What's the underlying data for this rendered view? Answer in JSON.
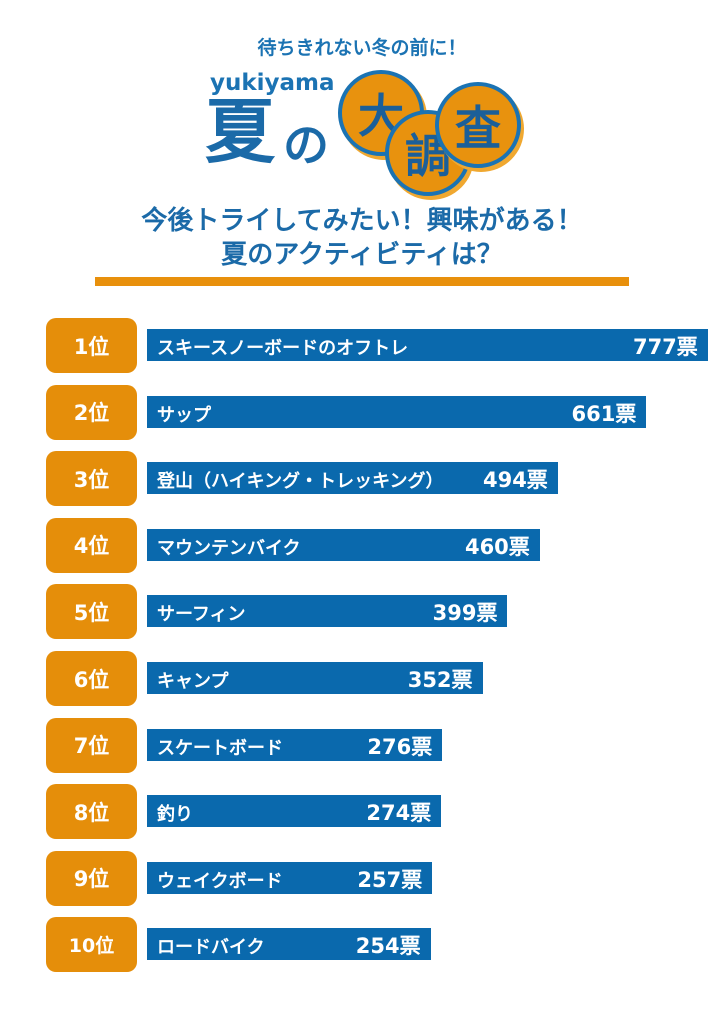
{
  "header": {
    "tagline": "待ちきれない冬の前に！",
    "brand": "yukiyama",
    "title_part1": "夏",
    "title_part2": "の",
    "title_circles": [
      "大",
      "調",
      "査"
    ],
    "question_line1": "今後トライしてみたい！興味がある！",
    "question_line2": "夏のアクティビティは？"
  },
  "colors": {
    "blue": "#0a69ad",
    "orange": "#e58e0a"
  },
  "chart_data": {
    "type": "bar",
    "orientation": "horizontal",
    "title": "今後トライしてみたい！興味がある！夏のアクティビティは？",
    "unit": "票",
    "ranks": [
      "1位",
      "2位",
      "3位",
      "4位",
      "5位",
      "6位",
      "7位",
      "8位",
      "9位",
      "10位"
    ],
    "categories": [
      "スキースノーボードのオフトレ",
      "サップ",
      "登山（ハイキング・トレッキング）",
      "マウンテンバイク",
      "サーフィン",
      "キャンプ",
      "スケートボード",
      "釣り",
      "ウェイクボード",
      "ロードバイク"
    ],
    "values": [
      777,
      661,
      494,
      460,
      399,
      352,
      276,
      274,
      257,
      254
    ],
    "value_labels": [
      "777票",
      "661票",
      "494票",
      "460票",
      "399票",
      "352票",
      "276票",
      "274票",
      "257票",
      "254票"
    ]
  }
}
